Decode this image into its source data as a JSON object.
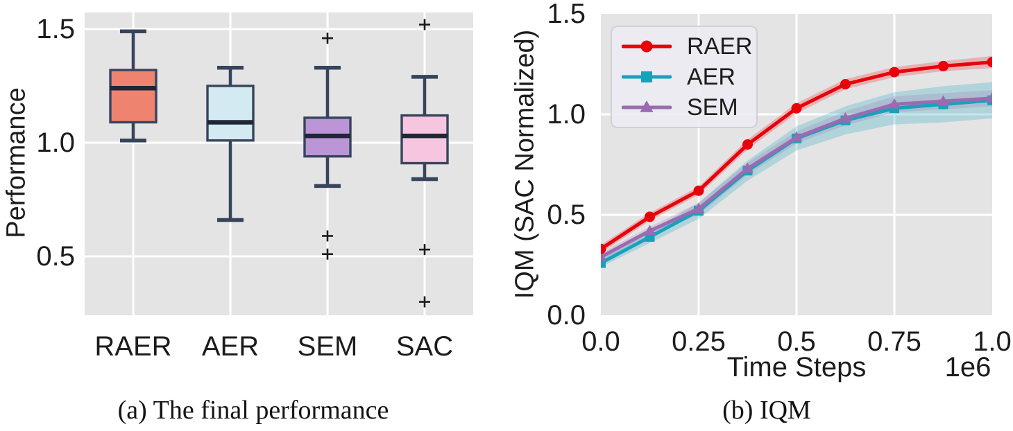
{
  "captions": {
    "a": "(a) The final performance",
    "b": "(b) IQM"
  },
  "style": {
    "plot_bg": "#E4E4E4",
    "grid_color": "#FFFFFF",
    "text_color": "#1C1C1C"
  },
  "chart_data": [
    {
      "type": "box",
      "ylabel": "Performance",
      "ylim": [
        0.24,
        1.57
      ],
      "yticks": [
        {
          "v": 1.5,
          "label": "1.5"
        },
        {
          "v": 1.0,
          "label": "1.0"
        },
        {
          "v": 0.5,
          "label": "0.5"
        }
      ],
      "categories": [
        "RAER",
        "AER",
        "SEM",
        "SAC"
      ],
      "boxes": [
        {
          "label": "RAER",
          "whislo": 1.01,
          "q1": 1.09,
          "med": 1.24,
          "q3": 1.32,
          "whishi": 1.49,
          "fliers": [],
          "fill": "#EE8370"
        },
        {
          "label": "AER",
          "whislo": 0.66,
          "q1": 1.01,
          "med": 1.09,
          "q3": 1.25,
          "whishi": 1.33,
          "fliers": [],
          "fill": "#D3EAF2"
        },
        {
          "label": "SEM",
          "whislo": 0.81,
          "q1": 0.94,
          "med": 1.03,
          "q3": 1.11,
          "whishi": 1.33,
          "fliers": [
            1.46,
            0.59,
            0.51
          ],
          "fill": "#BC95D6"
        },
        {
          "label": "SAC",
          "whislo": 0.84,
          "q1": 0.91,
          "med": 1.03,
          "q3": 1.12,
          "whishi": 1.29,
          "fliers": [
            1.52,
            0.53,
            0.3
          ],
          "fill": "#F6C6E1"
        }
      ],
      "edge_color": "#37445C",
      "median_color": "#1F2736",
      "flier_color": "#1A1A1A",
      "bg": "#E4E4E4",
      "grid_color": "#FFFFFF"
    },
    {
      "type": "line",
      "ylabel": "IQM (SAC Normalized)",
      "xlabel": "Time Steps",
      "x_offset_label": "1e6",
      "ylim": [
        0.0,
        1.5
      ],
      "xlim": [
        0.0,
        1.0
      ],
      "yticks": [
        {
          "v": 1.5,
          "label": "1.5"
        },
        {
          "v": 1.0,
          "label": "1.0"
        },
        {
          "v": 0.5,
          "label": "0.5"
        },
        {
          "v": 0.0,
          "label": "0.0"
        }
      ],
      "xticks": [
        {
          "v": 0.0,
          "label": "0.0"
        },
        {
          "v": 0.25,
          "label": "0.25"
        },
        {
          "v": 0.5,
          "label": "0.5"
        },
        {
          "v": 0.75,
          "label": "0.75"
        },
        {
          "v": 1.0,
          "label": "1.0"
        }
      ],
      "x": [
        0,
        0.125,
        0.25,
        0.375,
        0.5,
        0.625,
        0.75,
        0.875,
        1.0
      ],
      "series": [
        {
          "name": "RAER",
          "color": "#E8000B",
          "marker": "circle",
          "values": [
            0.33,
            0.49,
            0.62,
            0.85,
            1.03,
            1.15,
            1.21,
            1.24,
            1.26
          ],
          "band": [
            0.02,
            0.02,
            0.02,
            0.025,
            0.025,
            0.025,
            0.025,
            0.025,
            0.03
          ]
        },
        {
          "name": "AER",
          "color": "#17A2BC",
          "marker": "square",
          "values": [
            0.26,
            0.39,
            0.52,
            0.72,
            0.88,
            0.97,
            1.03,
            1.05,
            1.07
          ],
          "band": [
            0.02,
            0.03,
            0.04,
            0.05,
            0.06,
            0.07,
            0.08,
            0.09,
            0.09
          ]
        },
        {
          "name": "SEM",
          "color": "#9A6BB0",
          "marker": "triangle",
          "values": [
            0.29,
            0.42,
            0.53,
            0.73,
            0.885,
            0.98,
            1.05,
            1.065,
            1.08
          ],
          "band": [
            0.02,
            0.02,
            0.03,
            0.03,
            0.03,
            0.035,
            0.04,
            0.04,
            0.04
          ]
        }
      ],
      "legend_position": "upper left",
      "bg": "#E4E4E4",
      "grid_color": "#FFFFFF"
    }
  ]
}
